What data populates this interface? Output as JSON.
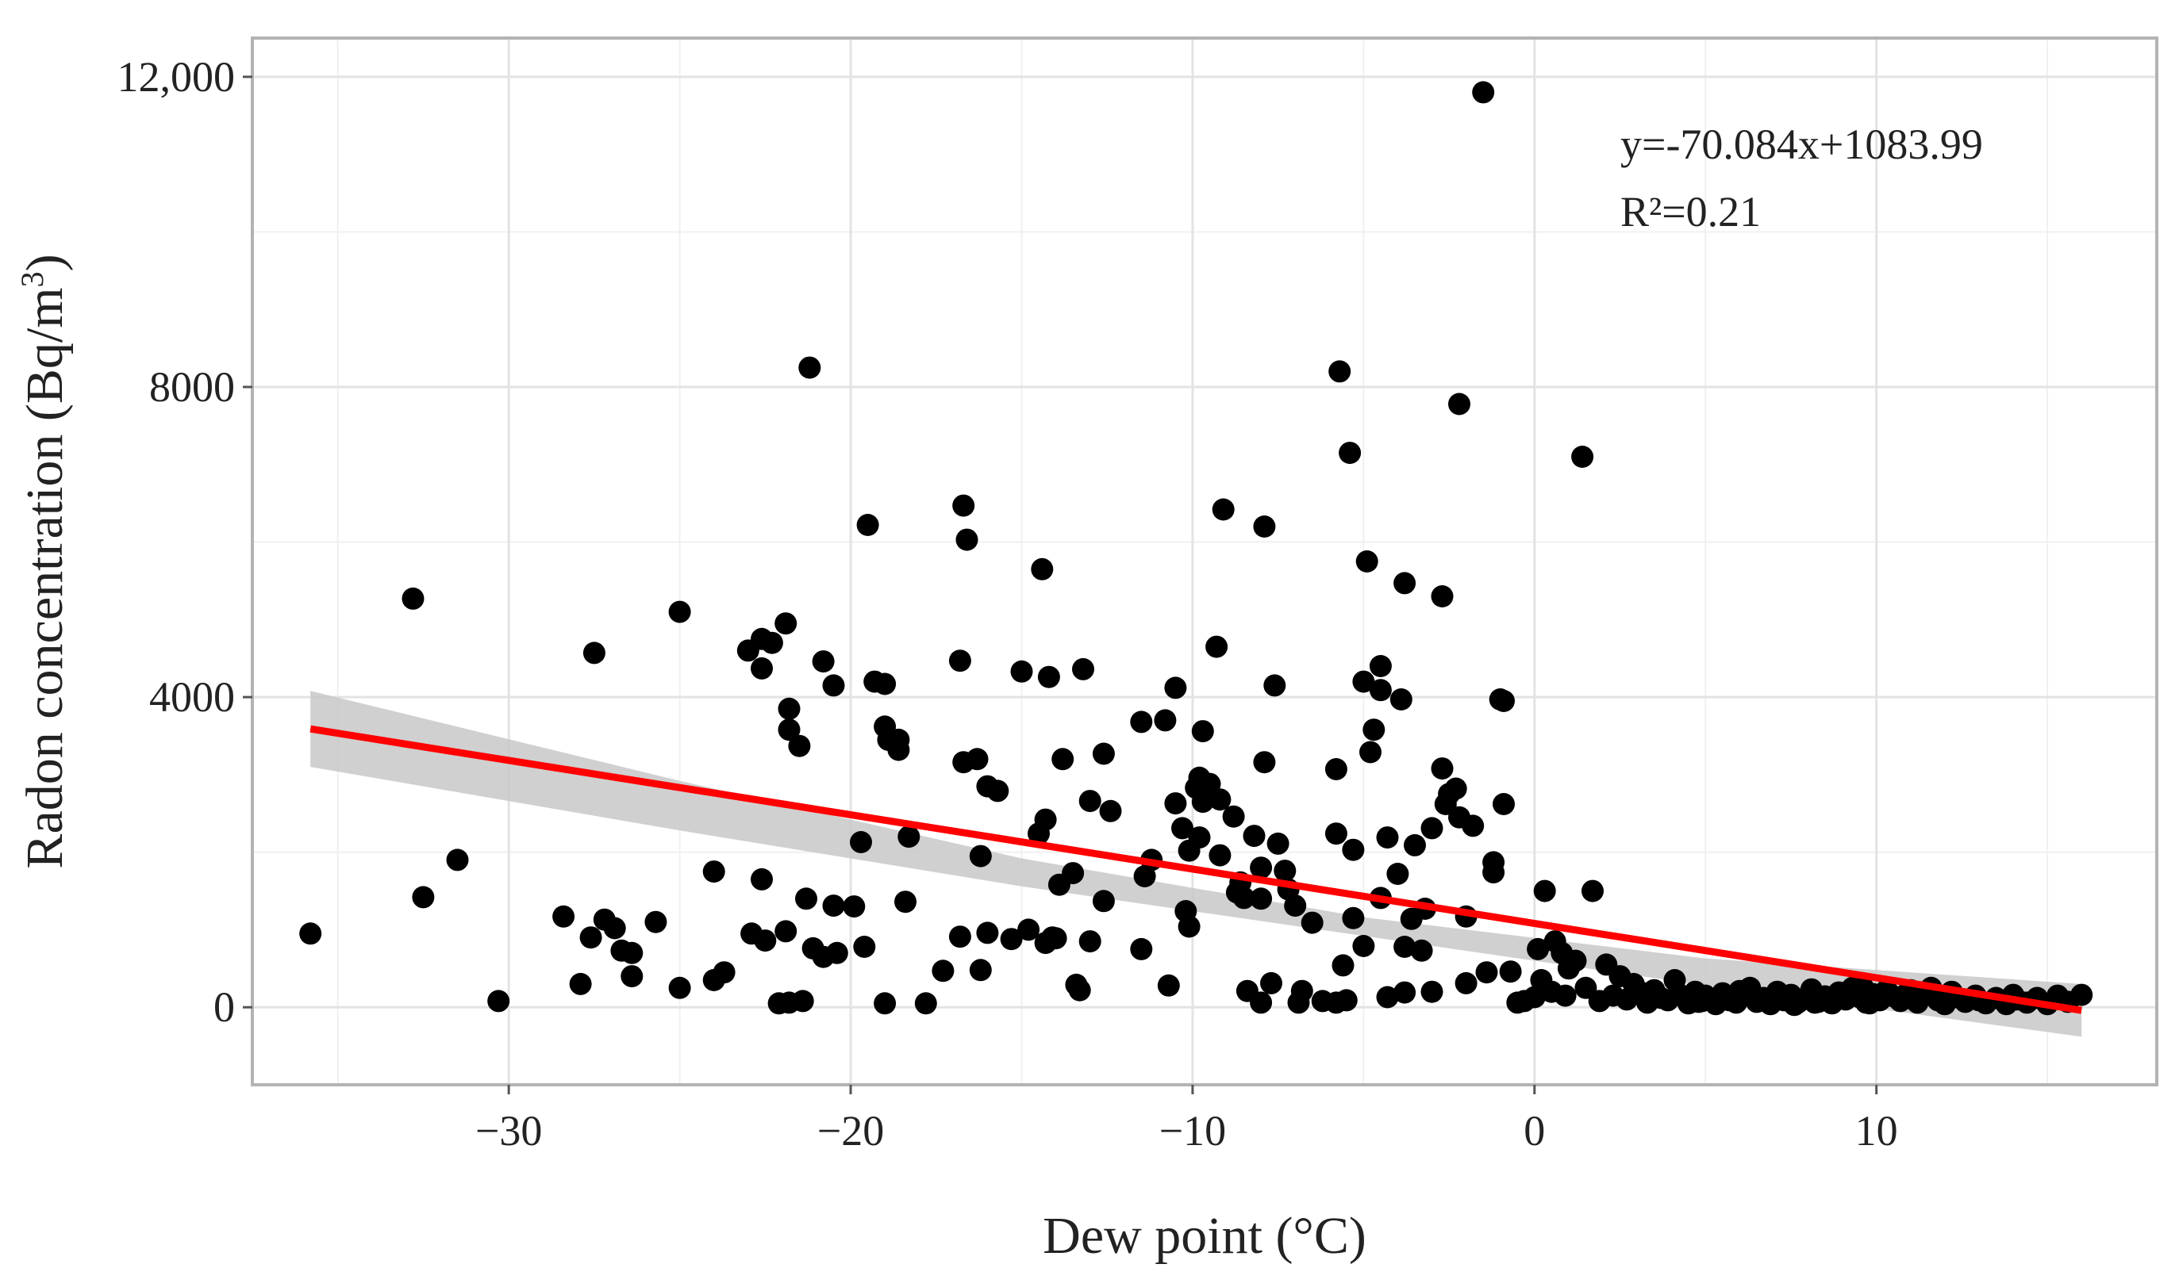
{
  "chart_data": {
    "type": "scatter",
    "xlabel": "Dew point (°C)",
    "ylabel_prefix": "Radon concentration (Bq/m",
    "ylabel_sup": "3",
    "ylabel_suffix": ")",
    "xlim": [
      -37.5,
      18.2
    ],
    "ylim": [
      -1000,
      12500
    ],
    "x_ticks": [
      -30,
      -20,
      -10,
      0,
      10
    ],
    "x_tick_labels": [
      "−30",
      "−20",
      "−10",
      "0",
      "10"
    ],
    "y_ticks": [
      0,
      4000,
      8000,
      12000
    ],
    "y_tick_labels": [
      "0",
      "4000",
      "8000",
      "12,000"
    ],
    "x_minor_grid": [
      -35,
      -25,
      -15,
      -5,
      5,
      15
    ],
    "y_minor_grid": [
      2000,
      6000,
      10000
    ],
    "grid": true,
    "regression": {
      "equation": "y=-70.084x+1083.99",
      "r2": "R²=0.21",
      "x_range": [
        -35.8,
        16
      ],
      "line": [
        [
          -35.8,
          3590
        ],
        [
          16,
          -40
        ]
      ],
      "ci_upper": [
        [
          -35.8,
          4080
        ],
        [
          -25,
          2920
        ],
        [
          -15,
          1920
        ],
        [
          -5,
          1160
        ],
        [
          5,
          630
        ],
        [
          16,
          300
        ]
      ],
      "ci_lower": [
        [
          16,
          -380
        ],
        [
          5,
          280
        ],
        [
          -5,
          920
        ],
        [
          -15,
          1560
        ],
        [
          -25,
          2280
        ],
        [
          -35.8,
          3100
        ]
      ],
      "color": "#ff0000",
      "band_color": "#c8c8c8"
    },
    "point_color": "#000000",
    "points": [
      [
        -35.8,
        950
      ],
      [
        -32.8,
        5270
      ],
      [
        -32.5,
        1420
      ],
      [
        -31.5,
        1900
      ],
      [
        -30.3,
        80
      ],
      [
        -28.4,
        1170
      ],
      [
        -27.9,
        300
      ],
      [
        -27.6,
        900
      ],
      [
        -27.5,
        4570
      ],
      [
        -27.2,
        1130
      ],
      [
        -26.9,
        1020
      ],
      [
        -26.7,
        730
      ],
      [
        -26.4,
        700
      ],
      [
        -26.4,
        400
      ],
      [
        -25.7,
        1100
      ],
      [
        -25.0,
        5100
      ],
      [
        -25.0,
        250
      ],
      [
        -24.0,
        1750
      ],
      [
        -24.0,
        350
      ],
      [
        -23.7,
        450
      ],
      [
        -23.0,
        4600
      ],
      [
        -22.9,
        950
      ],
      [
        -22.6,
        4750
      ],
      [
        -22.6,
        1650
      ],
      [
        -22.6,
        4370
      ],
      [
        -22.5,
        860
      ],
      [
        -22.3,
        4700
      ],
      [
        -22.1,
        50
      ],
      [
        -21.9,
        4950
      ],
      [
        -21.9,
        980
      ],
      [
        -21.8,
        3850
      ],
      [
        -21.8,
        3580
      ],
      [
        -21.8,
        60
      ],
      [
        -21.5,
        3370
      ],
      [
        -21.4,
        80
      ],
      [
        -21.3,
        1400
      ],
      [
        -21.2,
        8250
      ],
      [
        -21.1,
        760
      ],
      [
        -20.8,
        4460
      ],
      [
        -20.8,
        650
      ],
      [
        -20.5,
        4150
      ],
      [
        -20.5,
        1310
      ],
      [
        -20.4,
        700
      ],
      [
        -19.9,
        1300
      ],
      [
        -19.7,
        2130
      ],
      [
        -19.6,
        780
      ],
      [
        -19.5,
        6220
      ],
      [
        -19.3,
        4200
      ],
      [
        -19.0,
        4170
      ],
      [
        -19.0,
        3620
      ],
      [
        -19.0,
        50
      ],
      [
        -18.9,
        3450
      ],
      [
        -18.6,
        3320
      ],
      [
        -18.6,
        3450
      ],
      [
        -18.4,
        1360
      ],
      [
        -18.3,
        2200
      ],
      [
        -17.8,
        50
      ],
      [
        -17.3,
        470
      ],
      [
        -16.8,
        4470
      ],
      [
        -16.8,
        910
      ],
      [
        -16.7,
        6470
      ],
      [
        -16.7,
        3160
      ],
      [
        -16.6,
        6030
      ],
      [
        -16.3,
        3200
      ],
      [
        -16.2,
        1950
      ],
      [
        -16.2,
        480
      ],
      [
        -16.0,
        2850
      ],
      [
        -16.0,
        960
      ],
      [
        -15.7,
        2790
      ],
      [
        -15.3,
        880
      ],
      [
        -15.0,
        4330
      ],
      [
        -14.8,
        1000
      ],
      [
        -14.5,
        2240
      ],
      [
        -14.4,
        5650
      ],
      [
        -14.3,
        2420
      ],
      [
        -14.3,
        830
      ],
      [
        -14.2,
        4260
      ],
      [
        -14.1,
        900
      ],
      [
        -14.0,
        890
      ],
      [
        -13.9,
        1580
      ],
      [
        -13.8,
        3200
      ],
      [
        -13.5,
        1730
      ],
      [
        -13.4,
        290
      ],
      [
        -13.3,
        220
      ],
      [
        -13.2,
        4360
      ],
      [
        -13.0,
        2660
      ],
      [
        -13.0,
        850
      ],
      [
        -12.6,
        1370
      ],
      [
        -12.6,
        3270
      ],
      [
        -12.4,
        2530
      ],
      [
        -11.5,
        3680
      ],
      [
        -11.5,
        750
      ],
      [
        -11.4,
        1690
      ],
      [
        -11.2,
        1900
      ],
      [
        -10.8,
        3700
      ],
      [
        -10.7,
        280
      ],
      [
        -10.5,
        2630
      ],
      [
        -10.5,
        4120
      ],
      [
        -10.3,
        2310
      ],
      [
        -10.2,
        1240
      ],
      [
        -10.1,
        1040
      ],
      [
        -10.1,
        2020
      ],
      [
        -9.9,
        2830
      ],
      [
        -9.8,
        2190
      ],
      [
        -9.8,
        2960
      ],
      [
        -9.7,
        2650
      ],
      [
        -9.7,
        3560
      ],
      [
        -9.5,
        2880
      ],
      [
        -9.3,
        4650
      ],
      [
        -9.2,
        2680
      ],
      [
        -9.2,
        1960
      ],
      [
        -9.1,
        6420
      ],
      [
        -8.8,
        2460
      ],
      [
        -8.7,
        1480
      ],
      [
        -8.6,
        1610
      ],
      [
        -8.5,
        1410
      ],
      [
        -8.4,
        210
      ],
      [
        -8.2,
        2210
      ],
      [
        -8.0,
        1800
      ],
      [
        -8.0,
        1400
      ],
      [
        -8.0,
        60
      ],
      [
        -7.9,
        6200
      ],
      [
        -7.9,
        3160
      ],
      [
        -7.7,
        310
      ],
      [
        -7.6,
        4150
      ],
      [
        -7.5,
        2110
      ],
      [
        -7.3,
        1760
      ],
      [
        -7.2,
        1520
      ],
      [
        -7.0,
        1310
      ],
      [
        -6.9,
        60
      ],
      [
        -6.8,
        210
      ],
      [
        -6.5,
        1090
      ],
      [
        -6.2,
        80
      ],
      [
        -5.8,
        60
      ],
      [
        -5.8,
        3070
      ],
      [
        -5.8,
        2240
      ],
      [
        -5.7,
        8200
      ],
      [
        -5.6,
        540
      ],
      [
        -5.5,
        90
      ],
      [
        -5.4,
        7150
      ],
      [
        -5.3,
        1150
      ],
      [
        -5.3,
        2030
      ],
      [
        -5.0,
        4200
      ],
      [
        -5.0,
        790
      ],
      [
        -4.9,
        5750
      ],
      [
        -4.8,
        3290
      ],
      [
        -4.7,
        3580
      ],
      [
        -4.5,
        4090
      ],
      [
        -4.5,
        4400
      ],
      [
        -4.5,
        1410
      ],
      [
        -4.3,
        2190
      ],
      [
        -4.3,
        130
      ],
      [
        -4.0,
        1720
      ],
      [
        -3.9,
        3970
      ],
      [
        -3.8,
        5470
      ],
      [
        -3.8,
        780
      ],
      [
        -3.8,
        190
      ],
      [
        -3.6,
        1140
      ],
      [
        -3.5,
        2090
      ],
      [
        -3.3,
        730
      ],
      [
        -3.2,
        1270
      ],
      [
        -3.0,
        200
      ],
      [
        -3.0,
        2310
      ],
      [
        -2.7,
        5300
      ],
      [
        -2.7,
        3080
      ],
      [
        -2.6,
        2620
      ],
      [
        -2.5,
        2750
      ],
      [
        -2.3,
        2820
      ],
      [
        -2.2,
        7780
      ],
      [
        -2.2,
        2450
      ],
      [
        -2.0,
        1170
      ],
      [
        -2.0,
        310
      ],
      [
        -1.8,
        2340
      ],
      [
        -1.5,
        11800
      ],
      [
        -1.4,
        450
      ],
      [
        -1.2,
        1740
      ],
      [
        -1.2,
        1870
      ],
      [
        -1.0,
        3970
      ],
      [
        -0.9,
        3950
      ],
      [
        -0.9,
        2620
      ],
      [
        -0.7,
        460
      ],
      [
        -0.5,
        60
      ],
      [
        -0.3,
        80
      ],
      [
        0.0,
        130
      ],
      [
        0.1,
        750
      ],
      [
        0.2,
        350
      ],
      [
        0.3,
        1500
      ],
      [
        0.5,
        200
      ],
      [
        0.6,
        850
      ],
      [
        0.8,
        700
      ],
      [
        0.9,
        150
      ],
      [
        1.0,
        500
      ],
      [
        1.2,
        600
      ],
      [
        1.4,
        7100
      ],
      [
        1.5,
        250
      ],
      [
        1.7,
        1500
      ],
      [
        1.9,
        80
      ],
      [
        2.1,
        550
      ],
      [
        2.3,
        150
      ],
      [
        2.5,
        400
      ],
      [
        2.7,
        100
      ],
      [
        2.9,
        300
      ],
      [
        3.1,
        180
      ],
      [
        3.3,
        60
      ],
      [
        3.5,
        220
      ],
      [
        3.7,
        120
      ],
      [
        3.9,
        90
      ],
      [
        4.1,
        350
      ],
      [
        4.3,
        150
      ],
      [
        4.5,
        50
      ],
      [
        4.7,
        200
      ],
      [
        4.9,
        80
      ],
      [
        5.1,
        120
      ],
      [
        5.3,
        40
      ],
      [
        5.5,
        180
      ],
      [
        5.7,
        90
      ],
      [
        5.9,
        60
      ],
      [
        6.1,
        150
      ],
      [
        6.3,
        250
      ],
      [
        6.5,
        70
      ],
      [
        6.7,
        120
      ],
      [
        6.9,
        40
      ],
      [
        7.1,
        200
      ],
      [
        7.3,
        90
      ],
      [
        7.5,
        160
      ],
      [
        7.7,
        60
      ],
      [
        7.9,
        110
      ],
      [
        8.1,
        230
      ],
      [
        8.3,
        70
      ],
      [
        8.5,
        140
      ],
      [
        8.7,
        50
      ],
      [
        8.9,
        190
      ],
      [
        9.1,
        100
      ],
      [
        9.3,
        250
      ],
      [
        9.5,
        130
      ],
      [
        9.7,
        60
      ],
      [
        9.9,
        170
      ],
      [
        10.1,
        90
      ],
      [
        10.3,
        220
      ],
      [
        10.5,
        140
      ],
      [
        10.7,
        80
      ],
      [
        10.9,
        180
      ],
      [
        11.2,
        60
      ],
      [
        11.4,
        150
      ],
      [
        11.6,
        250
      ],
      [
        11.8,
        90
      ],
      [
        12.0,
        40
      ],
      [
        12.3,
        130
      ],
      [
        12.6,
        70
      ],
      [
        12.9,
        150
      ],
      [
        13.2,
        50
      ],
      [
        13.5,
        120
      ],
      [
        13.8,
        40
      ],
      [
        14.1,
        100
      ],
      [
        14.4,
        60
      ],
      [
        14.7,
        120
      ],
      [
        15.0,
        40
      ],
      [
        15.3,
        150
      ],
      [
        15.6,
        70
      ],
      [
        16.0,
        160
      ],
      [
        3.2,
        180
      ],
      [
        4.8,
        70
      ],
      [
        6.0,
        210
      ],
      [
        7.6,
        30
      ],
      [
        8.8,
        140
      ],
      [
        9.6,
        260
      ],
      [
        10.8,
        120
      ],
      [
        12.2,
        200
      ],
      [
        13.0,
        90
      ],
      [
        14.0,
        160
      ],
      [
        5.0,
        150
      ],
      [
        6.8,
        110
      ],
      [
        8.2,
        60
      ],
      [
        9.8,
        50
      ],
      [
        11.0,
        220
      ]
    ]
  },
  "annotation": {
    "equation": "y=-70.084x+1083.99",
    "r2": "R²=0.21"
  }
}
